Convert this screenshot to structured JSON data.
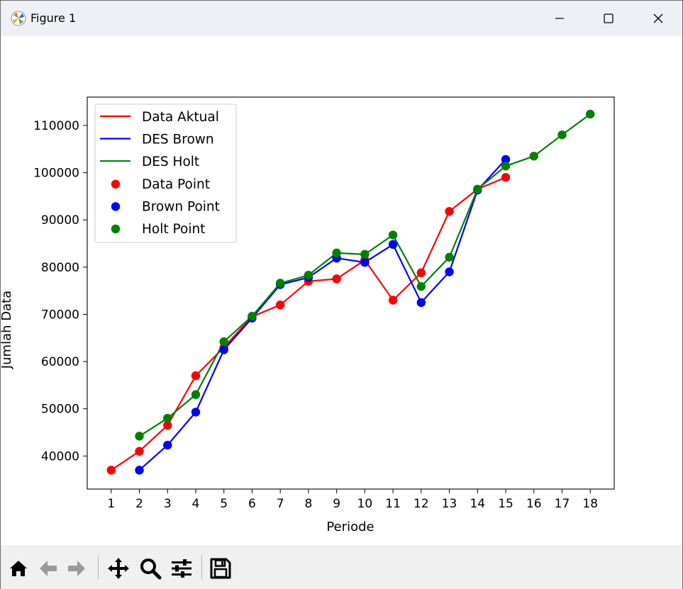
{
  "window": {
    "title": "Figure 1",
    "icons": {
      "app": "matplotlib-logo-icon",
      "minimize": "minimize-icon",
      "maximize": "maximize-icon",
      "close": "close-icon"
    }
  },
  "toolbar": {
    "buttons": [
      {
        "name": "home-icon",
        "action": "Home"
      },
      {
        "name": "back-arrow-icon",
        "action": "Back"
      },
      {
        "name": "forward-arrow-icon",
        "action": "Forward"
      },
      {
        "name": "pan-icon",
        "action": "Pan"
      },
      {
        "name": "zoom-icon",
        "action": "Zoom"
      },
      {
        "name": "configure-subplots-icon",
        "action": "Subplots"
      },
      {
        "name": "save-icon",
        "action": "Save"
      }
    ]
  },
  "chart_data": {
    "type": "line",
    "title": "",
    "xlabel": "Periode",
    "ylabel": "Jumlah Data",
    "xlim": [
      0.15,
      18.85
    ],
    "ylim": [
      33000,
      116000
    ],
    "x_ticks": [
      1,
      2,
      3,
      4,
      5,
      6,
      7,
      8,
      9,
      10,
      11,
      12,
      13,
      14,
      15,
      16,
      17,
      18
    ],
    "y_ticks": [
      40000,
      50000,
      60000,
      70000,
      80000,
      90000,
      100000,
      110000
    ],
    "legend_position": "top-left",
    "legend": [
      "Data Aktual",
      "DES Brown",
      "DES Holt",
      "Data Point",
      "Brown Point",
      "Holt Point"
    ],
    "series": [
      {
        "name": "Data Aktual",
        "kind": "line",
        "color": "#ff0000",
        "x": [
          1,
          2,
          3,
          4,
          5,
          6,
          7,
          8,
          9,
          10,
          11,
          12,
          13,
          14,
          15
        ],
        "y": [
          37000,
          41000,
          46500,
          57000,
          63000,
          69500,
          72000,
          77000,
          77500,
          81500,
          73000,
          78800,
          91800,
          96500,
          99000
        ]
      },
      {
        "name": "DES Brown",
        "kind": "line",
        "color": "#0000ff",
        "x": [
          2,
          3,
          4,
          5,
          6,
          7,
          8,
          9,
          10,
          11,
          12,
          13,
          14,
          15
        ],
        "y": [
          37000,
          42300,
          49300,
          62500,
          69200,
          76300,
          77800,
          81900,
          81000,
          84800,
          72500,
          79000,
          96300,
          102800
        ]
      },
      {
        "name": "DES Holt",
        "kind": "line",
        "color": "#008000",
        "x": [
          2,
          3,
          4,
          5,
          6,
          7,
          8,
          9,
          10,
          11,
          12,
          13,
          14,
          15,
          16,
          17,
          18
        ],
        "y": [
          44200,
          48000,
          53000,
          64200,
          69600,
          76600,
          78300,
          83000,
          82700,
          86800,
          75900,
          82100,
          96500,
          101400,
          103500,
          108000,
          112400
        ]
      },
      {
        "name": "Data Point",
        "kind": "scatter",
        "color": "#ff0000",
        "ref": 0
      },
      {
        "name": "Brown Point",
        "kind": "scatter",
        "color": "#0000ff",
        "ref": 1
      },
      {
        "name": "Holt Point",
        "kind": "scatter",
        "color": "#008000",
        "ref": 2
      }
    ]
  }
}
